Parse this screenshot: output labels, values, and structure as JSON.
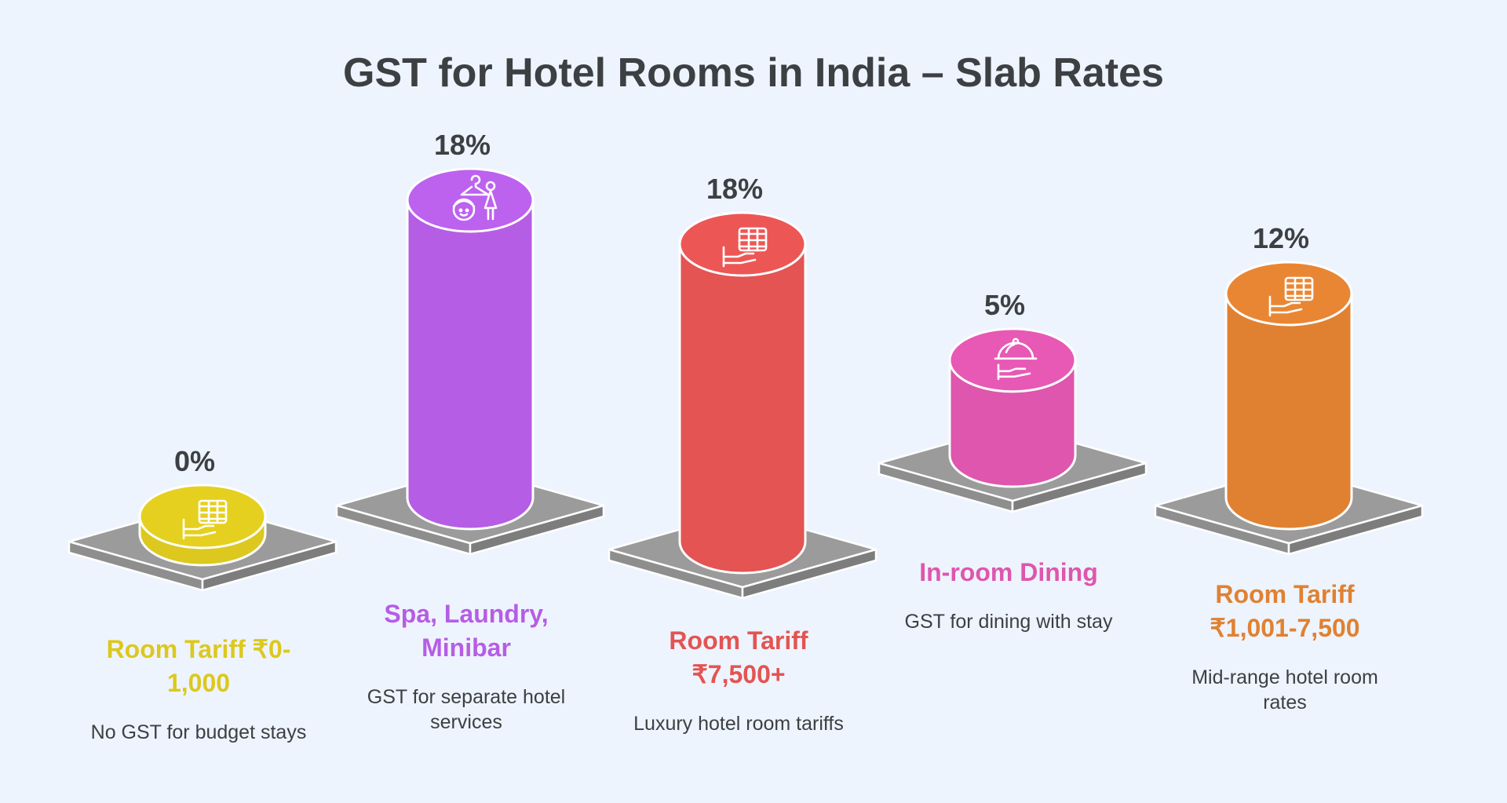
{
  "chart_data": {
    "type": "bar",
    "title": "GST for Hotel Rooms in India – Slab Rates",
    "categories": [
      "Room Tariff ₹0-1,000",
      "Spa, Laundry, Minibar",
      "Room Tariff ₹7,500+",
      "In-room Dining",
      "Room Tariff ₹1,001-7,500"
    ],
    "values": [
      0,
      18,
      18,
      5,
      12
    ],
    "value_labels": [
      "0%",
      "18%",
      "18%",
      "5%",
      "12%"
    ],
    "items": [
      {
        "label_lines": [
          "Room Tariff ₹0-",
          "1,000"
        ],
        "desc_lines": [
          "No GST for budget stays"
        ],
        "color": "#dcc81e",
        "icon": "hotel-room-icon"
      },
      {
        "label_lines": [
          "Spa, Laundry,",
          "Minibar"
        ],
        "desc_lines": [
          "GST for separate hotel",
          "services"
        ],
        "color": "#b65de6",
        "icon": "spa-laundry-icon"
      },
      {
        "label_lines": [
          "Room Tariff",
          "₹7,500+"
        ],
        "desc_lines": [
          "Luxury hotel room tariffs"
        ],
        "color": "#e35452",
        "icon": "hotel-room-icon"
      },
      {
        "label_lines": [
          "In-room Dining"
        ],
        "desc_lines": [
          "GST for dining with stay"
        ],
        "color": "#de56ad",
        "icon": "dining-cloche-icon"
      },
      {
        "label_lines": [
          "Room Tariff",
          "₹1,001-7,500"
        ],
        "desc_lines": [
          "Mid-range hotel room",
          "rates"
        ],
        "color": "#e08132",
        "icon": "hotel-room-icon"
      }
    ],
    "ylabel": "",
    "xlabel": "",
    "ylim": [
      0,
      18
    ],
    "grid": false,
    "legend": "none"
  }
}
